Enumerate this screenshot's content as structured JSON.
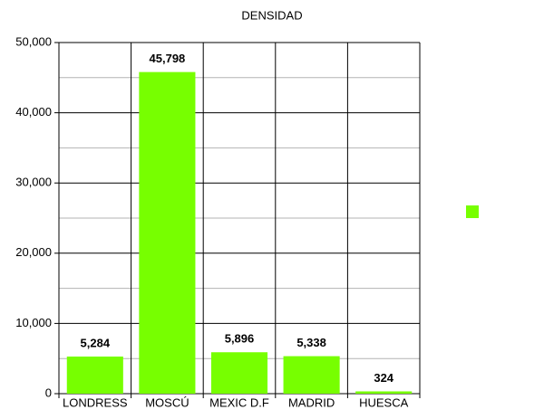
{
  "chart_data": {
    "type": "bar",
    "title": "DENSIDAD",
    "categories": [
      "LONDRESS",
      "MOSCÚ",
      "MEXIC D.F",
      "MADRID",
      "HUESCA"
    ],
    "values": [
      5284,
      45798,
      5896,
      5338,
      324
    ],
    "value_labels": [
      "5,284",
      "45,798",
      "5,896",
      "5,338",
      "324"
    ],
    "color": "#77ff00",
    "ylim": [
      0,
      50000
    ],
    "yticks": [
      0,
      {
        "value": 10000,
        "label": "10,000"
      },
      {
        "value": 20000,
        "label": "20,000"
      },
      {
        "value": 30000,
        "label": "30,000"
      },
      {
        "value": 40000,
        "label": "40,000"
      },
      {
        "value": 50000,
        "label": "50,000"
      }
    ],
    "minor_grid": [
      5000,
      15000,
      25000,
      35000,
      45000
    ],
    "grid": true,
    "legend": "right"
  }
}
